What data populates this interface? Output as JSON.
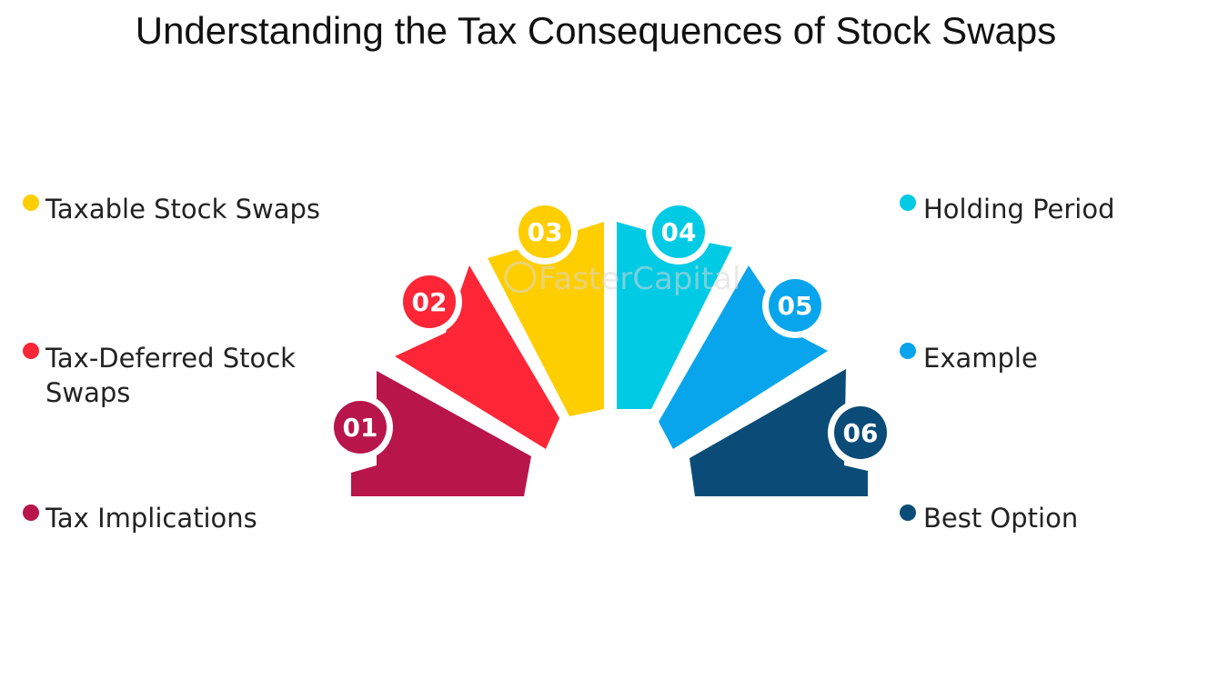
{
  "title": "Understanding the Tax Consequences of Stock Swaps",
  "watermark": "FasterCapital",
  "items": [
    {
      "number": "01",
      "label": "Tax Implications",
      "color": "#b8154b"
    },
    {
      "number": "02",
      "label": "Tax-Deferred Stock Swaps",
      "color": "#fc2637"
    },
    {
      "number": "03",
      "label": "Taxable Stock Swaps",
      "color": "#fece00"
    },
    {
      "number": "04",
      "label": "Holding Period",
      "color": "#00cae4"
    },
    {
      "number": "05",
      "label": "Example",
      "color": "#08a5ec"
    },
    {
      "number": "06",
      "label": "Best Option",
      "color": "#0a4c77"
    }
  ]
}
